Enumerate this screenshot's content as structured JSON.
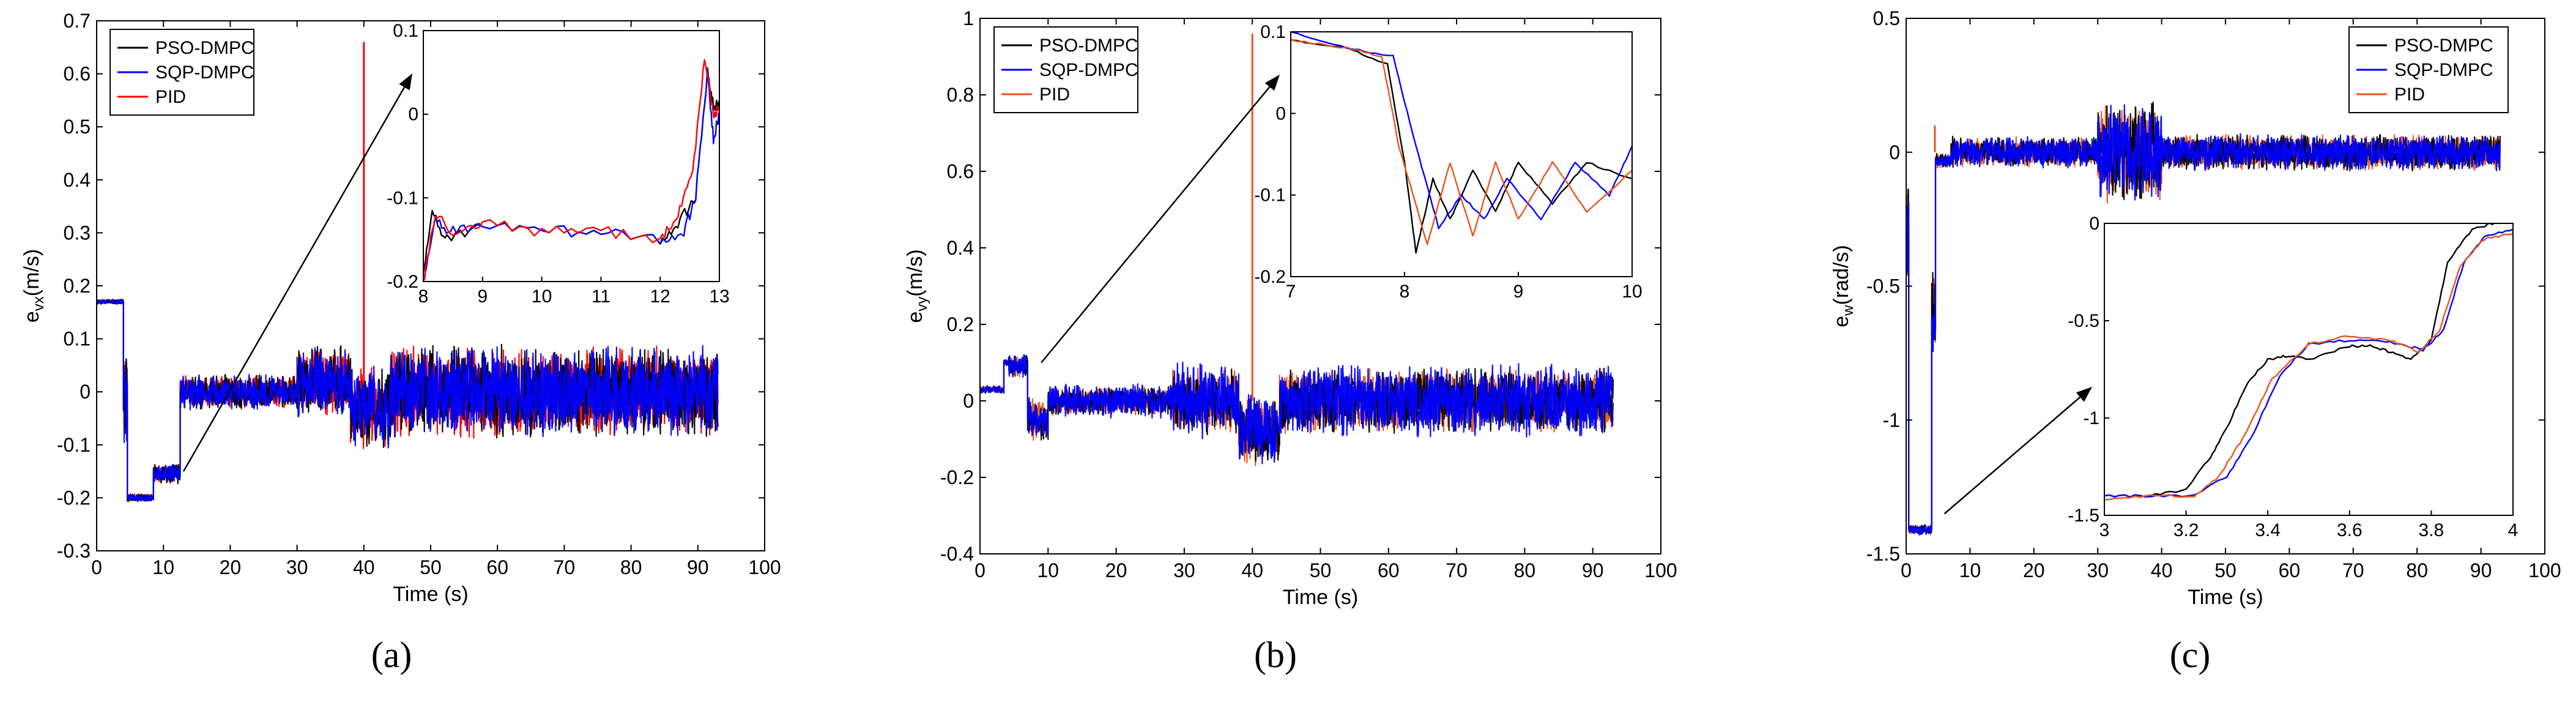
{
  "colors": {
    "pso": "#000000",
    "sqp": "#0000ff",
    "pid_a": "#ff0000",
    "pid_b": "#e8561e",
    "pid_c": "#e8561e",
    "arrow": "#000000"
  },
  "legend_labels": [
    "PSO-DMPC",
    "SQP-DMPC",
    "PID"
  ],
  "chart_data": [
    {
      "type": "line",
      "panel": "a",
      "caption": "(a)",
      "title": "",
      "xlabel": "Time (s)",
      "ylabel_main": "e",
      "ylabel_sub": "vx",
      "ylabel_unit": "(m/s)",
      "xlim": [
        0,
        100
      ],
      "ylim": [
        -0.3,
        0.7
      ],
      "xticks": [
        0,
        10,
        20,
        30,
        40,
        50,
        60,
        70,
        80,
        90,
        100
      ],
      "yticks": [
        -0.3,
        -0.2,
        -0.1,
        0,
        0.1,
        0.2,
        0.3,
        0.4,
        0.5,
        0.6,
        0.7
      ],
      "xtick_labels": [
        "0",
        "10",
        "20",
        "30",
        "40",
        "50",
        "60",
        "70",
        "80",
        "90",
        "100"
      ],
      "ytick_labels": [
        "-0.3",
        "-0.2",
        "-0.1",
        "0",
        "0.1",
        "0.2",
        "0.3",
        "0.4",
        "0.5",
        "0.6",
        "0.7"
      ],
      "legend_position": "top-left",
      "series": [
        {
          "name": "PSO-DMPC",
          "color_key": "pso"
        },
        {
          "name": "SQP-DMPC",
          "color_key": "sqp"
        },
        {
          "name": "PID",
          "color_key": "pid_a"
        }
      ],
      "segments": [
        {
          "t0": 0,
          "t1": 4,
          "mean": 0.17,
          "amp": 0.005
        },
        {
          "t0": 4,
          "t1": 4.6,
          "mean": -0.015,
          "amp": 0.09
        },
        {
          "t0": 4.6,
          "t1": 8.5,
          "mean": -0.2,
          "amp": 0.008
        },
        {
          "t0": 8.5,
          "t1": 12.5,
          "mean": -0.155,
          "amp": 0.02
        },
        {
          "t0": 12.5,
          "t1": 30,
          "mean": 0.0,
          "amp": 0.035
        },
        {
          "t0": 30,
          "t1": 38,
          "mean": 0.02,
          "amp": 0.07
        },
        {
          "t0": 38,
          "t1": 44,
          "mean": -0.03,
          "amp": 0.08
        },
        {
          "t0": 44,
          "t1": 93,
          "mean": 0.0,
          "amp": 0.09
        }
      ],
      "spike": {
        "t": 40,
        "value": 0.66,
        "series": "PID"
      },
      "inset": {
        "xlim": [
          8,
          13
        ],
        "ylim": [
          -0.2,
          0.1
        ],
        "xticks": [
          8,
          9,
          10,
          11,
          12,
          13
        ],
        "yticks": [
          -0.2,
          -0.1,
          0,
          0.1
        ],
        "xtick_labels": [
          "8",
          "9",
          "10",
          "11",
          "12",
          "13"
        ],
        "ytick_labels": [
          "-0.2",
          "-0.1",
          "0",
          "0.1"
        ],
        "arrow_from": [
          13,
          -0.15
        ],
        "curves": [
          {
            "series": "PSO-DMPC",
            "points": [
              [
                8,
                -0.19
              ],
              [
                8.15,
                -0.12
              ],
              [
                8.4,
                -0.15
              ],
              [
                9,
                -0.13
              ],
              [
                10,
                -0.14
              ],
              [
                11,
                -0.14
              ],
              [
                12,
                -0.15
              ],
              [
                12.3,
                -0.13
              ],
              [
                12.6,
                -0.1
              ],
              [
                12.8,
                0.05
              ],
              [
                12.9,
                0.01
              ],
              [
                13,
                0.01
              ]
            ]
          },
          {
            "series": "SQP-DMPC",
            "points": [
              [
                8,
                -0.2
              ],
              [
                8.2,
                -0.13
              ],
              [
                8.5,
                -0.14
              ],
              [
                9,
                -0.13
              ],
              [
                10,
                -0.14
              ],
              [
                11,
                -0.14
              ],
              [
                12,
                -0.15
              ],
              [
                12.4,
                -0.14
              ],
              [
                12.6,
                -0.1
              ],
              [
                12.8,
                0.05
              ],
              [
                12.9,
                -0.03
              ],
              [
                13,
                0.0
              ]
            ]
          },
          {
            "series": "PID",
            "points": [
              [
                8,
                -0.2
              ],
              [
                8.2,
                -0.12
              ],
              [
                8.5,
                -0.14
              ],
              [
                9,
                -0.13
              ],
              [
                10,
                -0.14
              ],
              [
                11,
                -0.14
              ],
              [
                12,
                -0.15
              ],
              [
                12.3,
                -0.12
              ],
              [
                12.55,
                -0.07
              ],
              [
                12.75,
                0.07
              ],
              [
                12.9,
                0.0
              ],
              [
                13,
                0.01
              ]
            ]
          }
        ]
      }
    },
    {
      "type": "line",
      "panel": "b",
      "caption": "(b)",
      "title": "",
      "xlabel": "Time (s)",
      "ylabel_main": "e",
      "ylabel_sub": "vy",
      "ylabel_unit": "(m/s)",
      "xlim": [
        0,
        100
      ],
      "ylim": [
        -0.4,
        1.0
      ],
      "xticks": [
        0,
        10,
        20,
        30,
        40,
        50,
        60,
        70,
        80,
        90,
        100
      ],
      "yticks": [
        -0.4,
        -0.2,
        0,
        0.2,
        0.4,
        0.6,
        0.8,
        1.0
      ],
      "xtick_labels": [
        "0",
        "10",
        "20",
        "30",
        "40",
        "50",
        "60",
        "70",
        "80",
        "90",
        "100"
      ],
      "ytick_labels": [
        "-0.4",
        "-0.2",
        "0",
        "0.2",
        "0.4",
        "0.6",
        "0.8",
        "1"
      ],
      "legend_position": "top-left",
      "series": [
        {
          "name": "PSO-DMPC",
          "color_key": "pso"
        },
        {
          "name": "SQP-DMPC",
          "color_key": "sqp"
        },
        {
          "name": "PID",
          "color_key": "pid_b"
        }
      ],
      "segments": [
        {
          "t0": 0,
          "t1": 3.5,
          "mean": 0.03,
          "amp": 0.01
        },
        {
          "t0": 3.5,
          "t1": 4.2,
          "mean": 0.1,
          "amp": 0.01
        },
        {
          "t0": 4.2,
          "t1": 7,
          "mean": 0.09,
          "amp": 0.03
        },
        {
          "t0": 7,
          "t1": 10,
          "mean": -0.05,
          "amp": 0.06
        },
        {
          "t0": 10,
          "t1": 28,
          "mean": 0.0,
          "amp": 0.04
        },
        {
          "t0": 28,
          "t1": 38,
          "mean": 0.0,
          "amp": 0.09
        },
        {
          "t0": 38,
          "t1": 44,
          "mean": -0.08,
          "amp": 0.09
        },
        {
          "t0": 44,
          "t1": 93,
          "mean": 0.0,
          "amp": 0.09
        }
      ],
      "spike": {
        "t": 40,
        "value": 0.96,
        "series": "PID"
      },
      "inset": {
        "xlim": [
          7,
          10
        ],
        "ylim": [
          -0.2,
          0.1
        ],
        "xticks": [
          7,
          8,
          9,
          10
        ],
        "yticks": [
          -0.2,
          -0.1,
          0,
          0.1
        ],
        "xtick_labels": [
          "7",
          "8",
          "9",
          "10"
        ],
        "ytick_labels": [
          "-0.2",
          "-0.1",
          "0",
          "0.1"
        ],
        "arrow_from": [
          9,
          0.1
        ],
        "curves": [
          {
            "series": "PSO-DMPC",
            "points": [
              [
                7,
                0.09
              ],
              [
                7.5,
                0.08
              ],
              [
                7.85,
                0.06
              ],
              [
                8.0,
                -0.06
              ],
              [
                8.1,
                -0.17
              ],
              [
                8.25,
                -0.08
              ],
              [
                8.4,
                -0.13
              ],
              [
                8.6,
                -0.07
              ],
              [
                8.8,
                -0.12
              ],
              [
                9.0,
                -0.06
              ],
              [
                9.3,
                -0.11
              ],
              [
                9.6,
                -0.06
              ],
              [
                10,
                -0.08
              ]
            ]
          },
          {
            "series": "SQP-DMPC",
            "points": [
              [
                7,
                0.1
              ],
              [
                7.5,
                0.08
              ],
              [
                7.9,
                0.07
              ],
              [
                8.1,
                -0.04
              ],
              [
                8.3,
                -0.14
              ],
              [
                8.5,
                -0.1
              ],
              [
                8.7,
                -0.13
              ],
              [
                8.9,
                -0.08
              ],
              [
                9.2,
                -0.13
              ],
              [
                9.5,
                -0.06
              ],
              [
                9.8,
                -0.1
              ],
              [
                10,
                -0.04
              ]
            ]
          },
          {
            "series": "PID",
            "points": [
              [
                7,
                0.09
              ],
              [
                7.5,
                0.08
              ],
              [
                7.8,
                0.07
              ],
              [
                7.95,
                -0.04
              ],
              [
                8.2,
                -0.16
              ],
              [
                8.4,
                -0.06
              ],
              [
                8.6,
                -0.15
              ],
              [
                8.8,
                -0.06
              ],
              [
                9.0,
                -0.13
              ],
              [
                9.3,
                -0.06
              ],
              [
                9.6,
                -0.12
              ],
              [
                10,
                -0.07
              ]
            ]
          }
        ]
      }
    },
    {
      "type": "line",
      "panel": "c",
      "caption": "(c)",
      "title": "",
      "xlabel": "Time (s)",
      "ylabel_main": "e",
      "ylabel_sub": "w",
      "ylabel_unit": "(rad/s)",
      "xlim": [
        0,
        100
      ],
      "ylim": [
        -1.5,
        0.5
      ],
      "xticks": [
        0,
        10,
        20,
        30,
        40,
        50,
        60,
        70,
        80,
        90,
        100
      ],
      "yticks": [
        -1.5,
        -1,
        -0.5,
        0,
        0.5
      ],
      "xtick_labels": [
        "0",
        "10",
        "20",
        "30",
        "40",
        "50",
        "60",
        "70",
        "80",
        "90",
        "100"
      ],
      "ytick_labels": [
        "-1.5",
        "-1",
        "-0.5",
        "0",
        "0.5"
      ],
      "legend_position": "top-right",
      "series": [
        {
          "name": "PSO-DMPC",
          "color_key": "pso"
        },
        {
          "name": "SQP-DMPC",
          "color_key": "sqp"
        },
        {
          "name": "PID",
          "color_key": "pid_c"
        }
      ],
      "segments": [
        {
          "t0": 0,
          "t1": 0.4,
          "mean": -0.3,
          "amp": 0.2
        },
        {
          "t0": 0.4,
          "t1": 4,
          "mean": -1.41,
          "amp": 0.02
        },
        {
          "t0": 4,
          "t1": 4.6,
          "mean": -0.6,
          "amp": 0.2
        },
        {
          "t0": 4.6,
          "t1": 7,
          "mean": -0.03,
          "amp": 0.03
        },
        {
          "t0": 7,
          "t1": 30,
          "mean": 0.0,
          "amp": 0.06
        },
        {
          "t0": 30,
          "t1": 40,
          "mean": 0.0,
          "amp": 0.2
        },
        {
          "t0": 40,
          "t1": 93,
          "mean": 0.0,
          "amp": 0.07
        }
      ],
      "spike": {
        "t": 4.5,
        "value": 0.1,
        "series": "PID"
      },
      "inset": {
        "xlim": [
          3,
          4
        ],
        "ylim": [
          -1.5,
          0
        ],
        "xticks": [
          3,
          3.2,
          3.4,
          3.6,
          3.8,
          4
        ],
        "yticks": [
          -1.5,
          -1,
          -0.5,
          0
        ],
        "xtick_labels": [
          "3",
          "3.2",
          "3.4",
          "3.6",
          "3.8",
          "4"
        ],
        "ytick_labels": [
          "-1.5",
          "-1",
          "-0.5",
          "0"
        ],
        "arrow_from": [
          6,
          -1.35
        ],
        "curves": [
          {
            "series": "PSO-DMPC",
            "points": [
              [
                3.0,
                -1.4
              ],
              [
                3.1,
                -1.4
              ],
              [
                3.2,
                -1.37
              ],
              [
                3.26,
                -1.2
              ],
              [
                3.3,
                -1.05
              ],
              [
                3.35,
                -0.82
              ],
              [
                3.4,
                -0.7
              ],
              [
                3.45,
                -0.68
              ],
              [
                3.5,
                -0.7
              ],
              [
                3.6,
                -0.63
              ],
              [
                3.65,
                -0.63
              ],
              [
                3.7,
                -0.66
              ],
              [
                3.75,
                -0.7
              ],
              [
                3.8,
                -0.6
              ],
              [
                3.84,
                -0.2
              ],
              [
                3.9,
                -0.03
              ],
              [
                3.95,
                0.0
              ],
              [
                4.0,
                0.02
              ]
            ]
          },
          {
            "series": "SQP-DMPC",
            "points": [
              [
                3.0,
                -1.4
              ],
              [
                3.1,
                -1.4
              ],
              [
                3.22,
                -1.4
              ],
              [
                3.3,
                -1.3
              ],
              [
                3.36,
                -1.1
              ],
              [
                3.43,
                -0.78
              ],
              [
                3.5,
                -0.62
              ],
              [
                3.6,
                -0.6
              ],
              [
                3.7,
                -0.61
              ],
              [
                3.78,
                -0.65
              ],
              [
                3.83,
                -0.55
              ],
              [
                3.88,
                -0.2
              ],
              [
                3.93,
                -0.07
              ],
              [
                4.0,
                -0.03
              ]
            ]
          },
          {
            "series": "PID",
            "points": [
              [
                3.0,
                -1.42
              ],
              [
                3.1,
                -1.4
              ],
              [
                3.22,
                -1.4
              ],
              [
                3.28,
                -1.3
              ],
              [
                3.34,
                -1.1
              ],
              [
                3.41,
                -0.8
              ],
              [
                3.5,
                -0.62
              ],
              [
                3.6,
                -0.58
              ],
              [
                3.7,
                -0.6
              ],
              [
                3.77,
                -0.66
              ],
              [
                3.82,
                -0.55
              ],
              [
                3.87,
                -0.22
              ],
              [
                3.93,
                -0.08
              ],
              [
                4.0,
                -0.05
              ]
            ]
          }
        ]
      }
    }
  ]
}
